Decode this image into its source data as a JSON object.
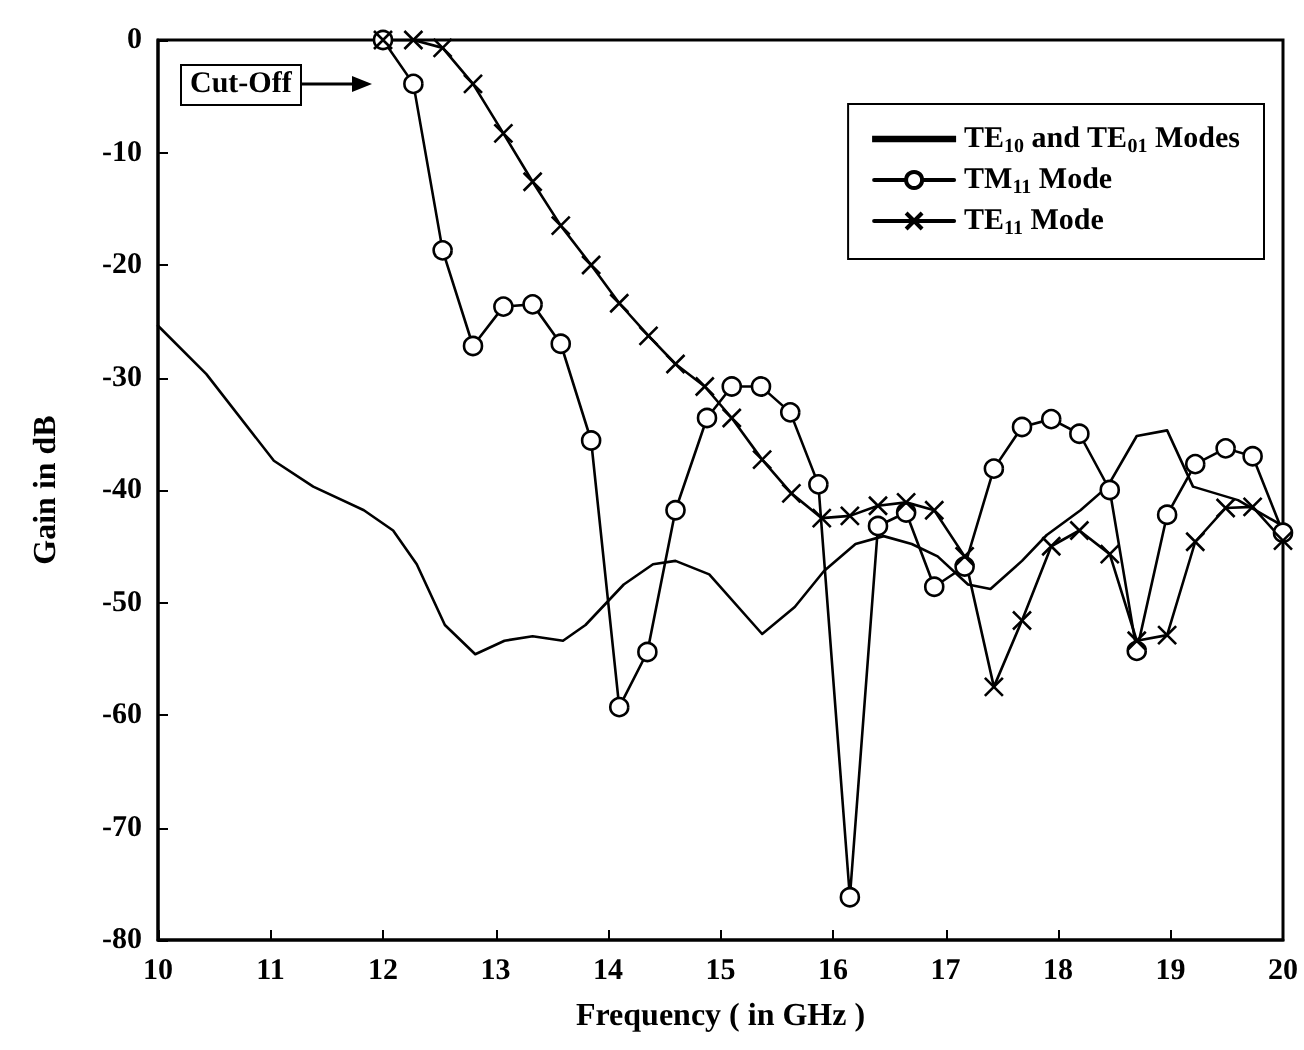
{
  "chart_data": {
    "type": "line",
    "xlabel": "Frequency ( in GHz )",
    "ylabel": "Gain in dB",
    "xlim": [
      10,
      20
    ],
    "xticks": [
      10,
      11,
      12,
      13,
      14,
      15,
      16,
      17,
      18,
      19,
      20
    ],
    "ylim": [
      -80,
      0
    ],
    "yticks": [
      0,
      -10,
      -20,
      -30,
      -40,
      -50,
      -60,
      -70,
      -80
    ],
    "grid": false,
    "legend": "top right",
    "annotations": [
      "Cut-Off"
    ],
    "series": [
      {
        "name": "TE$_{10}$ and TE$_{01}$ Modes",
        "color": "#000000",
        "marker": "none",
        "x": [
          10,
          10.43,
          11.03,
          11.38,
          11.83,
          12.09,
          12.3,
          12.55,
          12.82,
          13.08,
          13.33,
          13.6,
          13.8,
          14.14,
          14.4,
          14.6,
          14.9,
          15.37,
          15.66,
          15.92,
          16.2,
          16.45,
          16.7,
          16.93,
          17.2,
          17.4,
          17.68,
          17.9,
          18.2,
          18.44,
          18.7,
          18.97,
          19.2,
          19.6,
          20
        ],
        "values": [
          -25.4,
          -29.7,
          -37.4,
          -39.7,
          -41.8,
          -43.6,
          -46.6,
          -52,
          -54.6,
          -53.4,
          -53,
          -53.4,
          -52,
          -48.4,
          -46.6,
          -46.3,
          -47.5,
          -52.8,
          -50.4,
          -47.2,
          -44.8,
          -44.1,
          -44.8,
          -45.9,
          -48.4,
          -48.8,
          -46.3,
          -44,
          -41.8,
          -39.7,
          -35.2,
          -34.7,
          -39.7,
          -40.9,
          -43.2
        ]
      },
      {
        "name": "TM$_{11}$ Mode",
        "color": "#000000",
        "marker": "circle",
        "x": [
          12,
          12.27,
          12.53,
          12.8,
          13.07,
          13.33,
          13.58,
          13.85,
          14.1,
          14.35,
          14.6,
          14.88,
          15.1,
          15.36,
          15.62,
          15.87,
          16.15,
          16.4,
          16.65,
          16.9,
          17.17,
          17.43,
          17.68,
          17.94,
          18.19,
          18.46,
          18.7,
          18.97,
          19.22,
          19.49,
          19.73,
          20
        ],
        "values": [
          0,
          -3.9,
          -18.7,
          -27.2,
          -23.7,
          -23.5,
          -27,
          -35.6,
          -59.3,
          -54.4,
          -41.8,
          -33.6,
          -30.8,
          -30.8,
          -33.1,
          -39.5,
          -76.2,
          -43.2,
          -42,
          -48.6,
          -46.8,
          -38.1,
          -34.4,
          -33.7,
          -35,
          -40,
          -54.3,
          -42.2,
          -37.7,
          -36.3,
          -37,
          -43.8
        ]
      },
      {
        "name": "TE$_{11}$ Mode",
        "color": "#000000",
        "marker": "cross",
        "x": [
          12,
          12.27,
          12.53,
          12.8,
          13.07,
          13.33,
          13.58,
          13.85,
          14.1,
          14.36,
          14.6,
          14.86,
          15.1,
          15.37,
          15.63,
          15.9,
          16.15,
          16.4,
          16.65,
          16.9,
          17.17,
          17.43,
          17.68,
          17.94,
          18.19,
          18.46,
          18.7,
          18.97,
          19.22,
          19.49,
          19.73,
          20
        ],
        "values": [
          0,
          0,
          -0.7,
          -3.9,
          -8.3,
          -12.6,
          -16.5,
          -20,
          -23.4,
          -26.3,
          -28.8,
          -30.8,
          -33.6,
          -37.3,
          -40.3,
          -42.5,
          -42.3,
          -41.4,
          -41.1,
          -41.8,
          -45.9,
          -57.5,
          -51.6,
          -45,
          -43.6,
          -45.7,
          -53.4,
          -52.9,
          -44.6,
          -41.6,
          -41.5,
          -44.5
        ]
      }
    ]
  }
}
